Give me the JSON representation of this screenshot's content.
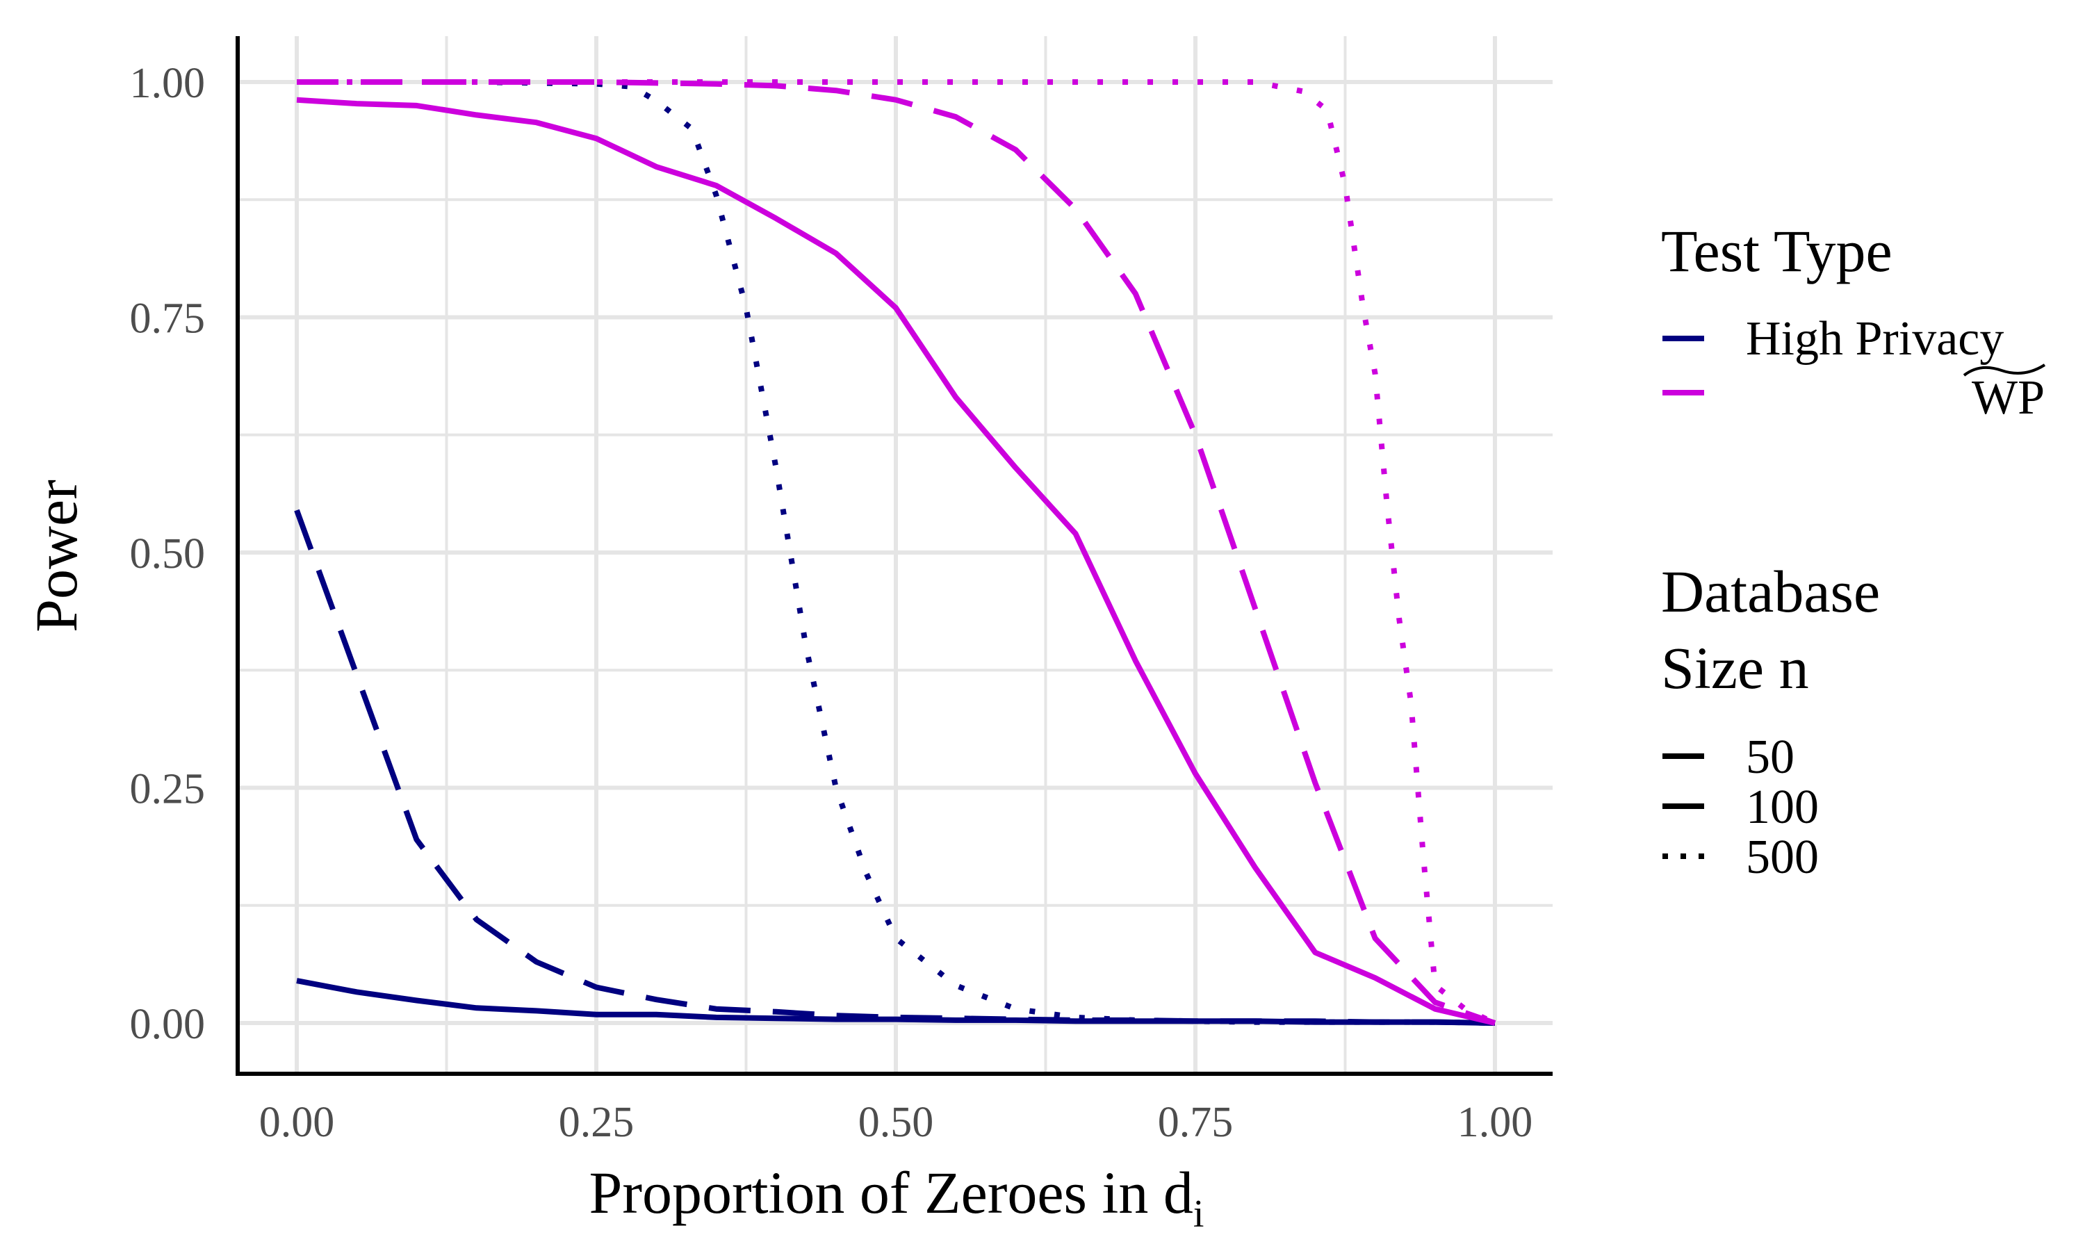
{
  "chart_data": {
    "type": "line",
    "title": "",
    "xlabel": "Proportion of Zeroes in d",
    "xlabel_subscript": "i",
    "ylabel": "Power",
    "xlim": [
      0,
      1
    ],
    "ylim": [
      0,
      1
    ],
    "x_ticks": [
      "0.00",
      "0.25",
      "0.50",
      "0.75",
      "1.00"
    ],
    "y_ticks": [
      "0.00",
      "0.25",
      "0.50",
      "0.75",
      "1.00"
    ],
    "grid": true,
    "legend_placement": "right",
    "legend": {
      "test_type_title": "Test Type",
      "test_types": [
        {
          "label": "High Privacy",
          "color": "#000080"
        },
        {
          "label": "WP",
          "color": "#CC00DD",
          "accent": "tilde"
        }
      ],
      "size_title_line1": "Database",
      "size_title_line2": "Size n",
      "sizes": [
        {
          "label": "50",
          "dash": "solid"
        },
        {
          "label": "100",
          "dash": "dashed"
        },
        {
          "label": "500",
          "dash": "dotted"
        }
      ]
    },
    "series": [
      {
        "test": "High Privacy",
        "n": "50",
        "color": "#000080",
        "dash": "solid",
        "x": [
          0,
          0.05,
          0.1,
          0.15,
          0.2,
          0.25,
          0.3,
          0.35,
          0.4,
          0.45,
          0.5,
          0.55,
          0.6,
          0.65,
          0.7,
          0.75,
          0.8,
          0.85,
          0.9,
          0.95,
          1.0
        ],
        "y": [
          0.045,
          0.033,
          0.024,
          0.016,
          0.013,
          0.009,
          0.009,
          0.006,
          0.005,
          0.004,
          0.004,
          0.003,
          0.003,
          0.002,
          0.002,
          0.002,
          0.002,
          0.001,
          0.001,
          0.001,
          0
        ]
      },
      {
        "test": "High Privacy",
        "n": "100",
        "color": "#000080",
        "dash": "dashed",
        "x": [
          0,
          0.05,
          0.1,
          0.15,
          0.2,
          0.25,
          0.3,
          0.35,
          0.4,
          0.45,
          0.5,
          0.55,
          0.6,
          0.65,
          0.7,
          0.75,
          0.8,
          0.85,
          0.9,
          0.95,
          1.0
        ],
        "y": [
          0.545,
          0.37,
          0.195,
          0.11,
          0.065,
          0.038,
          0.025,
          0.015,
          0.012,
          0.008,
          0.006,
          0.005,
          0.004,
          0.003,
          0.003,
          0.002,
          0.002,
          0.002,
          0.001,
          0.001,
          0
        ]
      },
      {
        "test": "High Privacy",
        "n": "500",
        "color": "#000080",
        "dash": "dotted",
        "x": [
          0,
          0.05,
          0.1,
          0.15,
          0.2,
          0.25,
          0.28,
          0.3,
          0.33,
          0.35,
          0.375,
          0.4,
          0.425,
          0.45,
          0.475,
          0.5,
          0.55,
          0.6,
          0.65,
          0.7,
          0.75,
          0.8,
          0.85,
          0.9,
          0.95,
          1.0
        ],
        "y": [
          1.0,
          1.0,
          1.0,
          1.0,
          0.999,
          0.998,
          0.995,
          0.98,
          0.95,
          0.88,
          0.76,
          0.59,
          0.4,
          0.25,
          0.16,
          0.09,
          0.04,
          0.015,
          0.006,
          0.003,
          0.002,
          0.001,
          0.001,
          0.001,
          0.001,
          0
        ]
      },
      {
        "test": "WP",
        "n": "50",
        "color": "#CC00DD",
        "dash": "solid",
        "x": [
          0,
          0.05,
          0.1,
          0.15,
          0.2,
          0.25,
          0.3,
          0.35,
          0.4,
          0.45,
          0.5,
          0.55,
          0.6,
          0.65,
          0.7,
          0.75,
          0.8,
          0.85,
          0.9,
          0.95,
          1.0
        ],
        "y": [
          0.981,
          0.977,
          0.975,
          0.965,
          0.957,
          0.94,
          0.91,
          0.89,
          0.855,
          0.818,
          0.76,
          0.665,
          0.59,
          0.52,
          0.385,
          0.265,
          0.165,
          0.075,
          0.048,
          0.015,
          0
        ]
      },
      {
        "test": "WP",
        "n": "100",
        "color": "#CC00DD",
        "dash": "dashed",
        "x": [
          0,
          0.05,
          0.1,
          0.15,
          0.2,
          0.25,
          0.3,
          0.35,
          0.4,
          0.45,
          0.5,
          0.55,
          0.6,
          0.65,
          0.7,
          0.75,
          0.8,
          0.85,
          0.9,
          0.95,
          1.0
        ],
        "y": [
          1.0,
          1.0,
          1.0,
          1.0,
          1.0,
          1.0,
          0.999,
          0.998,
          0.996,
          0.991,
          0.981,
          0.963,
          0.928,
          0.865,
          0.775,
          0.625,
          0.44,
          0.255,
          0.09,
          0.022,
          0
        ]
      },
      {
        "test": "WP",
        "n": "500",
        "color": "#CC00DD",
        "dash": "dotted",
        "x": [
          0,
          0.1,
          0.2,
          0.3,
          0.4,
          0.5,
          0.6,
          0.7,
          0.8,
          0.84,
          0.86,
          0.875,
          0.89,
          0.9,
          0.91,
          0.92,
          0.93,
          0.94,
          0.95,
          0.975,
          1.0
        ],
        "y": [
          1.0,
          1.0,
          1.0,
          1.0,
          1.0,
          1.0,
          1.0,
          1.0,
          1.0,
          0.99,
          0.97,
          0.89,
          0.76,
          0.69,
          0.55,
          0.43,
          0.34,
          0.18,
          0.04,
          0.015,
          0
        ]
      }
    ]
  }
}
